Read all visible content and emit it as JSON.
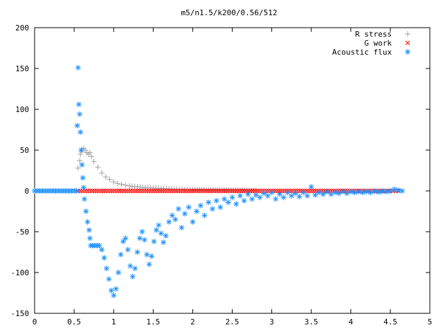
{
  "chart_data": {
    "type": "scatter",
    "title": "m5/n1.5/k200/0.56/512",
    "xlabel": "",
    "ylabel": "",
    "xlim": [
      0,
      5
    ],
    "ylim": [
      -150,
      200
    ],
    "x_ticks": [
      "0",
      "0.5",
      "1",
      "1.5",
      "2",
      "2.5",
      "3",
      "3.5",
      "4",
      "4.5",
      "5"
    ],
    "y_ticks": [
      "200",
      "150",
      "100",
      "50",
      "0",
      "-50",
      "-100",
      "-150"
    ],
    "legend_position": "top-right",
    "grid": false,
    "series": [
      {
        "name": "R stress",
        "marker": "+",
        "color": "#a0a0a0",
        "points": [
          [
            0.55,
            28
          ],
          [
            0.57,
            37
          ],
          [
            0.58,
            45
          ],
          [
            0.6,
            50
          ],
          [
            0.62,
            52
          ],
          [
            0.64,
            50
          ],
          [
            0.66,
            47
          ],
          [
            0.68,
            45
          ],
          [
            0.7,
            47
          ],
          [
            0.72,
            42
          ],
          [
            0.75,
            36
          ],
          [
            0.8,
            29
          ],
          [
            0.85,
            22
          ],
          [
            0.9,
            17
          ],
          [
            0.95,
            14
          ],
          [
            1.0,
            11
          ],
          [
            1.05,
            9
          ],
          [
            1.1,
            8
          ],
          [
            1.15,
            7
          ],
          [
            1.2,
            6
          ],
          [
            1.3,
            5
          ],
          [
            1.4,
            4
          ],
          [
            1.5,
            3.5
          ],
          [
            1.6,
            3
          ],
          [
            1.7,
            2.5
          ],
          [
            1.8,
            2
          ],
          [
            1.9,
            1.8
          ],
          [
            2.0,
            1.5
          ],
          [
            2.2,
            1.2
          ],
          [
            2.4,
            1
          ],
          [
            2.6,
            0.8
          ],
          [
            2.8,
            0.6
          ]
        ]
      },
      {
        "name": "G work",
        "marker": "x",
        "color": "#ff0000",
        "points": [
          [
            0.55,
            0
          ],
          [
            0.7,
            0
          ],
          [
            0.9,
            0
          ],
          [
            1.1,
            0
          ],
          [
            1.3,
            0
          ],
          [
            1.5,
            0
          ],
          [
            1.7,
            0
          ],
          [
            1.9,
            0
          ],
          [
            2.1,
            0
          ],
          [
            2.3,
            0
          ],
          [
            2.5,
            0
          ],
          [
            2.7,
            0
          ],
          [
            2.9,
            0
          ],
          [
            3.1,
            0
          ],
          [
            3.3,
            0
          ],
          [
            3.5,
            0
          ],
          [
            3.7,
            0
          ],
          [
            3.9,
            0
          ],
          [
            4.1,
            0
          ],
          [
            4.3,
            0
          ],
          [
            4.5,
            0
          ],
          [
            4.6,
            0
          ]
        ]
      },
      {
        "name": "Acoustic flux",
        "marker": "*",
        "color": "#1e90ff",
        "points": [
          [
            0.0,
            0
          ],
          [
            0.1,
            0
          ],
          [
            0.2,
            0
          ],
          [
            0.3,
            0
          ],
          [
            0.4,
            0
          ],
          [
            0.5,
            0
          ],
          [
            0.53,
            0
          ],
          [
            0.54,
            80
          ],
          [
            0.55,
            151
          ],
          [
            0.56,
            106
          ],
          [
            0.57,
            94
          ],
          [
            0.58,
            72
          ],
          [
            0.59,
            50
          ],
          [
            0.6,
            32
          ],
          [
            0.61,
            16
          ],
          [
            0.62,
            4
          ],
          [
            0.63,
            -10
          ],
          [
            0.65,
            -25
          ],
          [
            0.67,
            -38
          ],
          [
            0.69,
            -48
          ],
          [
            0.7,
            -58
          ],
          [
            0.71,
            -67
          ],
          [
            0.73,
            -67
          ],
          [
            0.76,
            -67
          ],
          [
            0.79,
            -67
          ],
          [
            0.82,
            -67
          ],
          [
            0.85,
            -72
          ],
          [
            0.88,
            -82
          ],
          [
            0.91,
            -95
          ],
          [
            0.94,
            -108
          ],
          [
            0.97,
            -122
          ],
          [
            1.0,
            -128
          ],
          [
            1.03,
            -120
          ],
          [
            1.06,
            -100
          ],
          [
            1.09,
            -78
          ],
          [
            1.12,
            -62
          ],
          [
            1.15,
            -58
          ],
          [
            1.18,
            -72
          ],
          [
            1.21,
            -92
          ],
          [
            1.24,
            -105
          ],
          [
            1.27,
            -95
          ],
          [
            1.3,
            -75
          ],
          [
            1.33,
            -58
          ],
          [
            1.36,
            -50
          ],
          [
            1.39,
            -60
          ],
          [
            1.42,
            -78
          ],
          [
            1.45,
            -90
          ],
          [
            1.48,
            -80
          ],
          [
            1.51,
            -62
          ],
          [
            1.54,
            -48
          ],
          [
            1.57,
            -42
          ],
          [
            1.6,
            -52
          ],
          [
            1.63,
            -63
          ],
          [
            1.66,
            -55
          ],
          [
            1.7,
            -38
          ],
          [
            1.74,
            -30
          ],
          [
            1.78,
            -35
          ],
          [
            1.82,
            -22
          ],
          [
            1.86,
            -45
          ],
          [
            1.9,
            -28
          ],
          [
            1.95,
            -20
          ],
          [
            2.0,
            -38
          ],
          [
            2.05,
            -25
          ],
          [
            2.1,
            -18
          ],
          [
            2.15,
            -30
          ],
          [
            2.2,
            -14
          ],
          [
            2.25,
            -22
          ],
          [
            2.3,
            -12
          ],
          [
            2.35,
            -20
          ],
          [
            2.4,
            -10
          ],
          [
            2.45,
            -14
          ],
          [
            2.5,
            -8
          ],
          [
            2.55,
            -16
          ],
          [
            2.6,
            -6
          ],
          [
            2.65,
            -12
          ],
          [
            2.7,
            -4
          ],
          [
            2.75,
            -10
          ],
          [
            2.8,
            -5
          ],
          [
            2.85,
            -8
          ],
          [
            2.9,
            -3
          ],
          [
            2.95,
            -6
          ],
          [
            3.0,
            -2
          ],
          [
            3.05,
            -10
          ],
          [
            3.1,
            -4
          ],
          [
            3.15,
            -8
          ],
          [
            3.2,
            -2
          ],
          [
            3.25,
            -6
          ],
          [
            3.3,
            -3
          ],
          [
            3.35,
            -7
          ],
          [
            3.4,
            -2
          ],
          [
            3.45,
            -6
          ],
          [
            3.5,
            5
          ],
          [
            3.55,
            -5
          ],
          [
            3.6,
            -2
          ],
          [
            3.65,
            -4
          ],
          [
            3.7,
            -1
          ],
          [
            3.75,
            -4
          ],
          [
            3.8,
            -2
          ],
          [
            3.85,
            -3
          ],
          [
            3.9,
            -1
          ],
          [
            3.95,
            -3
          ],
          [
            4.0,
            -1
          ],
          [
            4.05,
            -2
          ],
          [
            4.1,
            -1
          ],
          [
            4.15,
            -2
          ],
          [
            4.2,
            -1
          ],
          [
            4.25,
            -2
          ],
          [
            4.3,
            -0.5
          ],
          [
            4.35,
            -1.5
          ],
          [
            4.4,
            -0.5
          ],
          [
            4.45,
            -1
          ],
          [
            4.5,
            0
          ],
          [
            4.55,
            2
          ],
          [
            4.6,
            1
          ],
          [
            4.65,
            0
          ]
        ]
      }
    ]
  },
  "legend": [
    {
      "label": "R stress",
      "marker": "+",
      "color": "#a0a0a0"
    },
    {
      "label": "G work",
      "marker": "x",
      "color": "#ff0000"
    },
    {
      "label": "Acoustic flux",
      "marker": "*",
      "color": "#1e90ff"
    }
  ]
}
